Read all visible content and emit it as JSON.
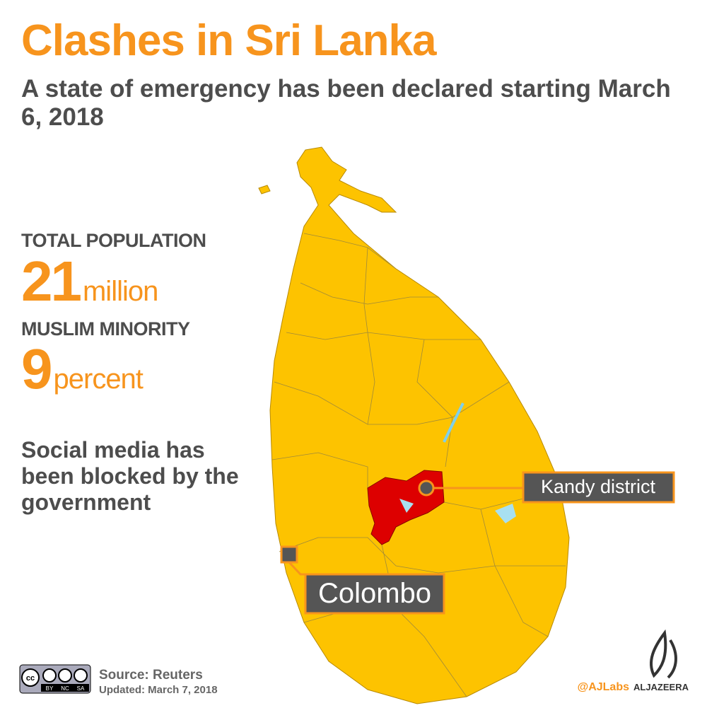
{
  "header": {
    "title": "Clashes in Sri Lanka",
    "subtitle": "A state of emergency has been declared starting March 6, 2018"
  },
  "stats": [
    {
      "label": "TOTAL POPULATION",
      "value": "21",
      "unit": "million"
    },
    {
      "label": "MUSLIM MINORITY",
      "value": "9",
      "unit": "percent"
    }
  ],
  "note": "Social media has been blocked by the government",
  "map": {
    "labels": [
      "Kandy district",
      "Colombo"
    ]
  },
  "footer": {
    "license": [
      "cc",
      "BY",
      "NC",
      "SA"
    ],
    "source": "Source: Reuters",
    "updated": "Updated: March 7, 2018",
    "handle": "@AJLabs",
    "brand": "ALJAZEERA"
  }
}
